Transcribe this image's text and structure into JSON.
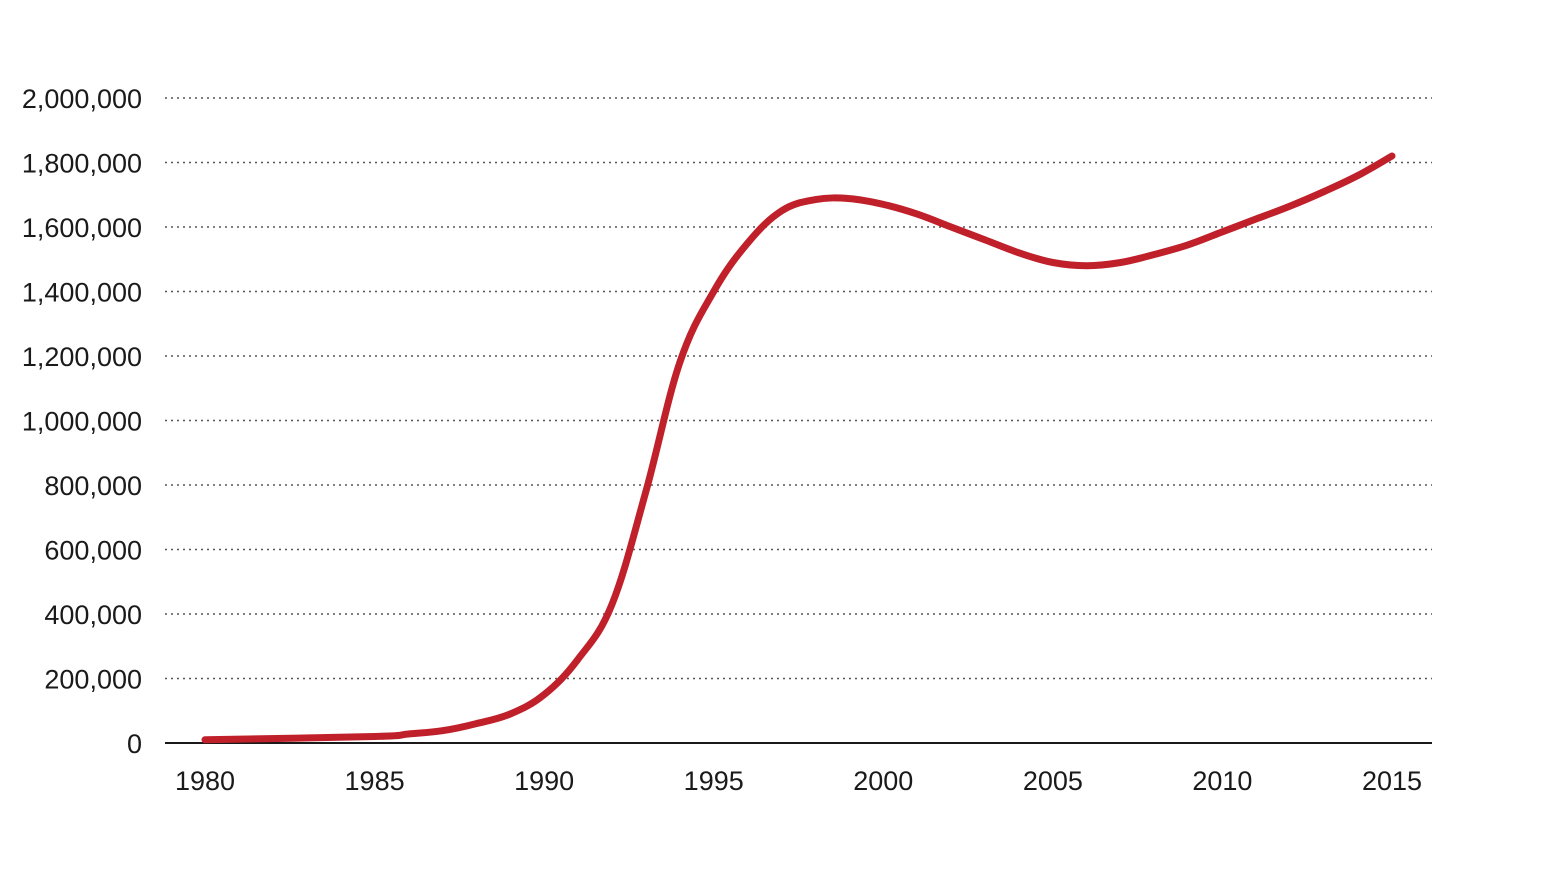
{
  "chart_data": {
    "type": "line",
    "title": "",
    "xlabel": "",
    "ylabel": "",
    "xlim": [
      1980,
      2015
    ],
    "ylim": [
      0,
      2000000
    ],
    "x_ticks": [
      1980,
      1985,
      1990,
      1995,
      2000,
      2005,
      2010,
      2015
    ],
    "x_tick_labels": [
      "1980",
      "1985",
      "1990",
      "1995",
      "2000",
      "2005",
      "2010",
      "2015"
    ],
    "y_ticks": [
      0,
      200000,
      400000,
      600000,
      800000,
      1000000,
      1200000,
      1400000,
      1600000,
      1800000,
      2000000
    ],
    "y_tick_labels": [
      "0",
      "200,000",
      "400,000",
      "600,000",
      "800,000",
      "1,000,000",
      "1,200,000",
      "1,400,000",
      "1,600,000",
      "1,800,000",
      "2,000,000"
    ],
    "grid": true,
    "legend": "none",
    "series": [
      {
        "color": "#c0202a",
        "x": [
          1980,
          1985,
          1986,
          1987,
          1988,
          1989,
          1990,
          1991,
          1992,
          1993,
          1994,
          1995,
          1996,
          1997,
          1998,
          1999,
          2000,
          2001,
          2002,
          2003,
          2004,
          2005,
          2006,
          2007,
          2008,
          2009,
          2010,
          2011,
          2012,
          2013,
          2014,
          2015
        ],
        "values": [
          10000,
          20000,
          28000,
          38000,
          60000,
          90000,
          150000,
          260000,
          430000,
          780000,
          1180000,
          1400000,
          1550000,
          1650000,
          1685000,
          1688000,
          1670000,
          1640000,
          1600000,
          1560000,
          1520000,
          1490000,
          1480000,
          1490000,
          1515000,
          1545000,
          1585000,
          1625000,
          1665000,
          1710000,
          1760000,
          1820000
        ]
      }
    ]
  }
}
